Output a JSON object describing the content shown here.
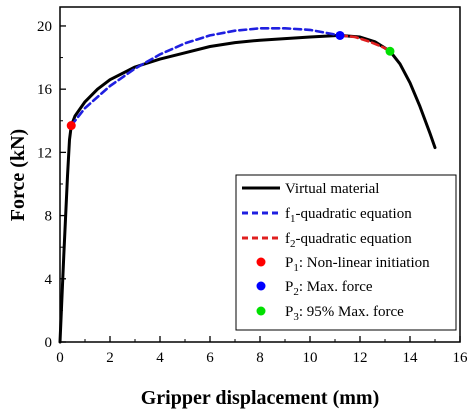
{
  "chart_data": {
    "type": "line",
    "xlabel": "Gripper displacement (mm)",
    "ylabel": "Force (kN)",
    "xlim": [
      0,
      16
    ],
    "ylim": [
      0,
      21.2
    ],
    "xticks": [
      0,
      2,
      4,
      6,
      8,
      10,
      12,
      14,
      16
    ],
    "yticks": [
      0,
      4,
      8,
      12,
      16,
      20
    ],
    "grid": false,
    "legend_position": "bottom-right",
    "series": [
      {
        "name": "Virtual material",
        "color": "#000000",
        "style": "solid",
        "x": [
          0.0,
          0.15,
          0.3,
          0.38,
          0.45,
          0.6,
          1.0,
          1.5,
          2.0,
          3.0,
          4.0,
          5.0,
          6.0,
          7.0,
          8.0,
          9.0,
          10.0,
          11.2,
          12.0,
          12.6,
          13.2,
          13.6,
          14.0,
          14.4,
          14.8,
          15.0
        ],
        "y": [
          0.0,
          5.5,
          10.5,
          12.8,
          13.7,
          14.3,
          15.2,
          16.0,
          16.6,
          17.4,
          17.9,
          18.3,
          18.7,
          18.95,
          19.1,
          19.2,
          19.3,
          19.4,
          19.3,
          19.0,
          18.4,
          17.6,
          16.4,
          14.9,
          13.2,
          12.3
        ]
      },
      {
        "name": "f1-quadratic equation",
        "color": "#1f1fe0",
        "style": "dashed",
        "x": [
          0.45,
          1.0,
          2.0,
          3.0,
          4.0,
          5.0,
          6.0,
          7.0,
          8.0,
          9.0,
          10.0,
          11.2
        ],
        "y": [
          13.7,
          14.8,
          16.2,
          17.3,
          18.2,
          18.9,
          19.4,
          19.7,
          19.85,
          19.85,
          19.75,
          19.4
        ]
      },
      {
        "name": "f2-quadratic equation",
        "color": "#e01f1f",
        "style": "dashed",
        "x": [
          11.2,
          11.8,
          12.4,
          13.0,
          13.2
        ],
        "y": [
          19.4,
          19.3,
          19.0,
          18.6,
          18.4
        ]
      }
    ],
    "points": [
      {
        "name": "P1: Non-linear initiation",
        "x": 0.45,
        "y": 13.7,
        "color": "#ff0000"
      },
      {
        "name": "P2: Max. force",
        "x": 11.2,
        "y": 19.4,
        "color": "#0000ff"
      },
      {
        "name": "P3: 95% Max. force",
        "x": 13.2,
        "y": 18.4,
        "color": "#00e000"
      }
    ],
    "legend": {
      "virtual": "Virtual material",
      "f1_pre": "f",
      "f1_sub": "1",
      "f1_post": "-quadratic equation",
      "f2_pre": "f",
      "f2_sub": "2",
      "f2_post": "-quadratic equation",
      "p1_pre": "P",
      "p1_sub": "1",
      "p1_post": ": Non-linear initiation",
      "p2_pre": "P",
      "p2_sub": "2",
      "p2_post": ": Max. force",
      "p3_pre": "P",
      "p3_sub": "3",
      "p3_post": ": 95% Max. force"
    }
  }
}
